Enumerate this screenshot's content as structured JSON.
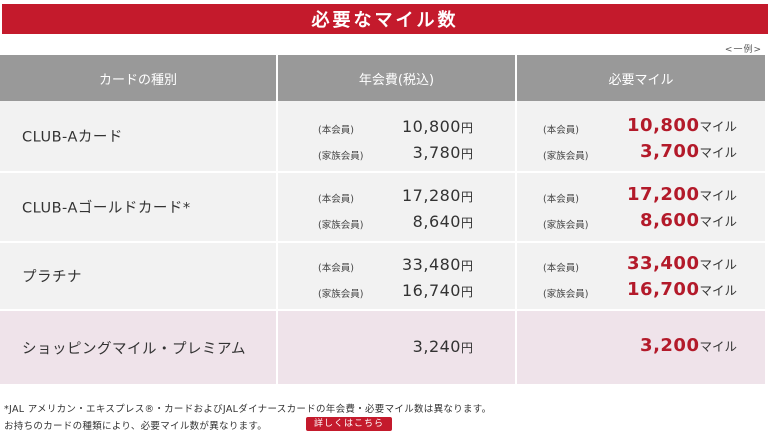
{
  "banner": {
    "title": "必要なマイル数"
  },
  "example_note": "<一例>",
  "headers": {
    "card_type": "カードの種別",
    "annual_fee": "年会費(税込)",
    "miles": "必要マイル"
  },
  "labels": {
    "main": "(本会員)",
    "family": "(家族会員)",
    "yen": "円",
    "mile": "マイル"
  },
  "rows": [
    {
      "name": "CLUB-Aカード",
      "fee_main": "10,800",
      "fee_family": "3,780",
      "miles_main": "10,800",
      "miles_family": "3,700"
    },
    {
      "name": "CLUB-Aゴールドカード*",
      "fee_main": "17,280",
      "fee_family": "8,640",
      "miles_main": "17,200",
      "miles_family": "8,600"
    },
    {
      "name": "プラチナ",
      "fee_main": "33,480",
      "fee_family": "16,740",
      "miles_main": "33,400",
      "miles_family": "16,700"
    }
  ],
  "premium": {
    "name": "ショッピングマイル・プレミアム",
    "fee": "3,240",
    "miles": "3,200"
  },
  "footer": {
    "note1": "*JAL アメリカン・エキスプレス®・カードおよびJALダイナースカードの年会費・必要マイル数は異なります。",
    "note2": "お持ちのカードの種類により、必要マイル数が異なります。",
    "detail_button": "詳しくはこちら"
  },
  "colors": {
    "accent": "#c41a2c",
    "header_bg": "#999999",
    "row_bg": "#f2f2f2",
    "premium_bg": "#efe3ea",
    "mile_text": "#b31a2a"
  }
}
